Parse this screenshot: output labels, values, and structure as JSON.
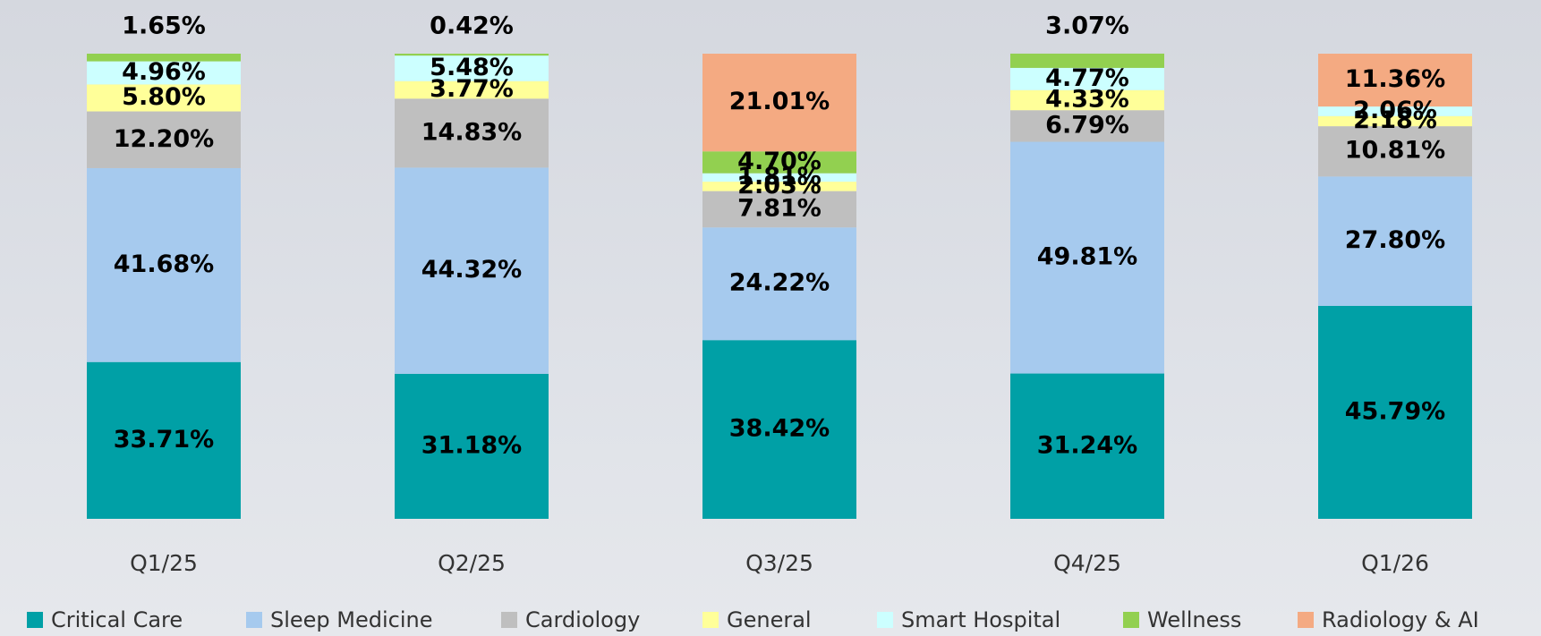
{
  "chart_data": {
    "type": "stacked_bar",
    "categories": [
      "Q1/25",
      "Q2/25",
      "Q3/25",
      "Q4/25",
      "Q1/26"
    ],
    "ylim": [
      0,
      100
    ],
    "series": [
      {
        "name": "Critical Care",
        "color": "#00a0a6",
        "values": [
          33.71,
          31.18,
          38.42,
          31.24,
          45.79
        ],
        "value_labels": [
          "33.71%",
          "31.18%",
          "38.42%",
          "31.24%",
          "45.79%"
        ]
      },
      {
        "name": "Sleep Medicine",
        "color": "#a6caee",
        "values": [
          41.68,
          44.32,
          24.22,
          49.81,
          27.8
        ],
        "value_labels": [
          "41.68%",
          "44.32%",
          "24.22%",
          "49.81%",
          "27.80%"
        ]
      },
      {
        "name": "Cardiology",
        "color": "#bfbfbf",
        "values": [
          12.2,
          14.83,
          7.81,
          6.79,
          10.81
        ],
        "value_labels": [
          "12.20%",
          "14.83%",
          "7.81%",
          "6.79%",
          "10.81%"
        ]
      },
      {
        "name": "General",
        "color": "#ffff99",
        "values": [
          5.8,
          3.77,
          2.03,
          4.33,
          2.18
        ],
        "value_labels": [
          "5.80%",
          "3.77%",
          "2.03%",
          "4.33%",
          "2.18%"
        ]
      },
      {
        "name": "Smart Hospital",
        "color": "#ccffff",
        "values": [
          4.96,
          5.48,
          1.81,
          4.77,
          2.06
        ],
        "value_labels": [
          "4.96%",
          "5.48%",
          "1.81%",
          "4.77%",
          "2.06%"
        ]
      },
      {
        "name": "Wellness",
        "color": "#92d050",
        "values": [
          1.65,
          0.42,
          4.7,
          3.07,
          null
        ],
        "value_labels": [
          "1.65%",
          "0.42%",
          "4.70%",
          "3.07%",
          null
        ]
      },
      {
        "name": "Radiology & AI",
        "color": "#f4aa82",
        "values": [
          null,
          null,
          21.01,
          null,
          11.36
        ],
        "value_labels": [
          null,
          null,
          "21.01%",
          null,
          "11.36%"
        ]
      }
    ]
  }
}
